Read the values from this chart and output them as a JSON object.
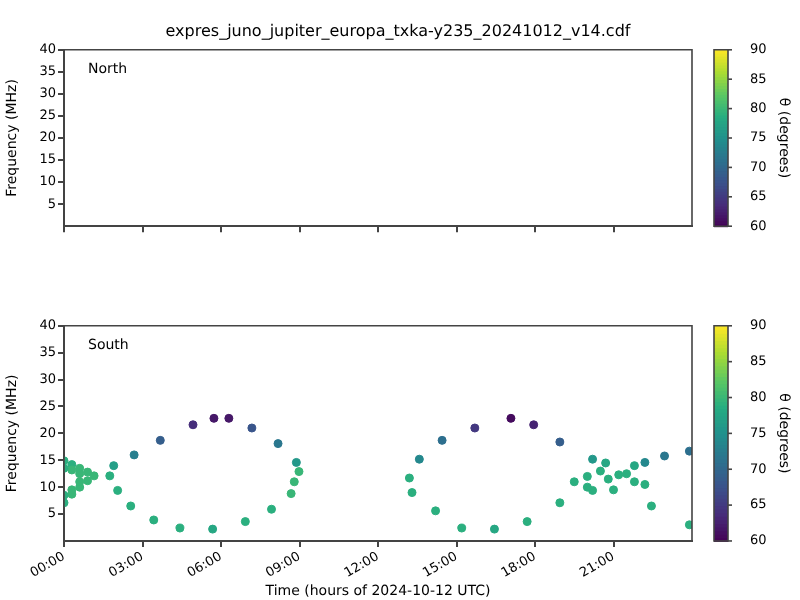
{
  "chart_data": [
    {
      "type": "scatter",
      "title": "expres_juno_jupiter_europa_txka-y235_20241012_v14.cdf",
      "ylabel": "Frequency (MHz)",
      "clabel": "θ (degrees)",
      "annotations": [
        "North"
      ],
      "marker": "circle",
      "xlim": [
        0,
        24
      ],
      "ylim": [
        0,
        40
      ],
      "xticks": [
        {
          "value": 0,
          "label": null
        },
        {
          "value": 3,
          "label": null
        },
        {
          "value": 6,
          "label": null
        },
        {
          "value": 9,
          "label": null
        },
        {
          "value": 12,
          "label": null
        },
        {
          "value": 15,
          "label": null
        },
        {
          "value": 18,
          "label": null
        },
        {
          "value": 21,
          "label": null
        }
      ],
      "yticks": [
        5,
        10,
        15,
        20,
        25,
        30,
        35,
        40
      ],
      "clim": [
        60,
        90
      ],
      "cticks": [
        60,
        65,
        70,
        75,
        80,
        85,
        90
      ],
      "tick_labels": "y"
    },
    {
      "type": "scatter",
      "xlabel": "Time (hours of 2024-10-12 UTC)",
      "ylabel": "Frequency (MHz)",
      "clabel": "θ (degrees)",
      "annotations": [
        "South"
      ],
      "marker": "circle",
      "x": [
        0,
        0.3,
        0.6,
        0.9,
        1.15,
        0.9,
        0.6,
        0.3,
        0,
        0.3,
        0.6,
        0.3,
        0.6,
        0,
        0,
        1.75,
        2.05,
        2.55,
        3.43,
        4.43,
        5.68,
        6.93,
        7.93,
        8.68,
        8.98,
        8.88,
        8.18,
        7.18,
        6.3,
        5.73,
        4.93,
        3.68,
        2.68,
        1.9,
        8.8,
        13.2,
        13.58,
        14.45,
        15.7,
        17.08,
        17.95,
        18.95,
        20.2,
        21.2,
        22.2,
        22.95,
        23.9,
        14.2,
        15.2,
        16.45,
        17.7,
        18.95,
        20.2,
        22.45,
        23.9,
        19.5,
        20.0,
        20.5,
        20.0,
        20.8,
        21.5,
        21.8,
        21.8,
        22.2,
        20.7,
        21.0,
        13.3
      ],
      "values": [
        14.9,
        14.2,
        13.5,
        12.8,
        12.1,
        11.2,
        10.0,
        8.7,
        7.1,
        13.2,
        12.5,
        9.5,
        11.0,
        13.5,
        8.5,
        12.1,
        9.4,
        6.5,
        3.9,
        2.4,
        2.2,
        3.6,
        5.9,
        8.8,
        12.9,
        14.6,
        18.1,
        21.0,
        22.8,
        22.8,
        21.6,
        18.7,
        16.0,
        14.0,
        11.0,
        11.7,
        15.2,
        18.7,
        21.0,
        22.8,
        21.6,
        18.4,
        15.2,
        12.3,
        14.6,
        15.8,
        16.7,
        5.6,
        2.4,
        2.2,
        3.6,
        7.1,
        9.4,
        6.5,
        3.0,
        11.0,
        12.0,
        13.0,
        10.0,
        11.5,
        12.5,
        11.0,
        14.0,
        10.5,
        14.5,
        9.5,
        9.0
      ],
      "cvalues": [
        79,
        79,
        80,
        80,
        80,
        80,
        80,
        80,
        79,
        80,
        80,
        80,
        80,
        79,
        79,
        79,
        79,
        79,
        79,
        79,
        78,
        79,
        79,
        80,
        80,
        76,
        72,
        68,
        62,
        62,
        64,
        69,
        73,
        77,
        80,
        79,
        74,
        71,
        65,
        61,
        63,
        69,
        76,
        79,
        74,
        72,
        71,
        79,
        79,
        78,
        79,
        79,
        79,
        79,
        79,
        79,
        79,
        79,
        79,
        79,
        79,
        79,
        78,
        79,
        78,
        79,
        79
      ],
      "xlim": [
        0,
        24
      ],
      "ylim": [
        0,
        40
      ],
      "xticks": [
        {
          "value": 0,
          "label": "00:00"
        },
        {
          "value": 3,
          "label": "03:00"
        },
        {
          "value": 6,
          "label": "06:00"
        },
        {
          "value": 9,
          "label": "09:00"
        },
        {
          "value": 12,
          "label": "12:00"
        },
        {
          "value": 15,
          "label": "15:00"
        },
        {
          "value": 18,
          "label": "18:00"
        },
        {
          "value": 21,
          "label": "21:00"
        }
      ],
      "yticks": [
        5,
        10,
        15,
        20,
        25,
        30,
        35,
        40
      ],
      "clim": [
        60,
        90
      ],
      "cticks": [
        60,
        65,
        70,
        75,
        80,
        85,
        90
      ]
    }
  ]
}
